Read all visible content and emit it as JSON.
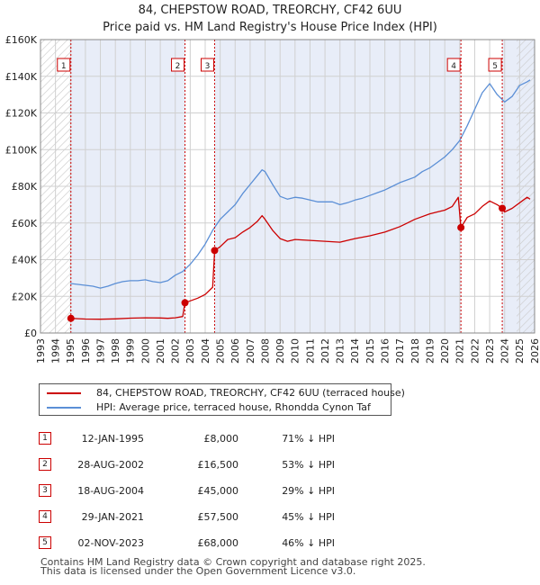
{
  "title": "84, CHEPSTOW ROAD, TREORCHY, CF42 6UU",
  "subtitle": "Price paid vs. HM Land Registry's House Price Index (HPI)",
  "chart_data": {
    "type": "line",
    "title": "84, CHEPSTOW ROAD, TREORCHY, CF42 6UU",
    "subtitle": "Price paid vs. HM Land Registry's House Price Index (HPI)",
    "xlabel": "",
    "ylabel": "",
    "xlim": [
      1993,
      2026
    ],
    "ylim": [
      0,
      160000
    ],
    "y_ticks": [
      0,
      20000,
      40000,
      60000,
      80000,
      100000,
      120000,
      140000,
      160000
    ],
    "y_tick_labels": [
      "£0",
      "£20K",
      "£40K",
      "£60K",
      "£80K",
      "£100K",
      "£120K",
      "£140K",
      "£160K"
    ],
    "x_ticks": [
      1993,
      1994,
      1995,
      1996,
      1997,
      1998,
      1999,
      2000,
      2001,
      2002,
      2003,
      2004,
      2005,
      2006,
      2007,
      2008,
      2009,
      2010,
      2011,
      2012,
      2013,
      2014,
      2015,
      2016,
      2017,
      2018,
      2019,
      2020,
      2021,
      2022,
      2023,
      2024,
      2025,
      2026
    ],
    "grid": true,
    "shaded_ranges": [
      [
        1995.0,
        2002.65
      ],
      [
        2004.63,
        2021.08
      ],
      [
        2023.84,
        2026
      ]
    ],
    "hatched_ranges": [
      [
        1993,
        1995.0
      ],
      [
        2024.8,
        2026
      ]
    ],
    "series": [
      {
        "name": "84, CHEPSTOW ROAD, TREORCHY, CF42 6UU (terraced house)",
        "color": "#cc0000",
        "points": [
          [
            1995.03,
            8000
          ],
          [
            1995.5,
            7800
          ],
          [
            1996,
            7600
          ],
          [
            1997,
            7500
          ],
          [
            1998,
            7700
          ],
          [
            1999,
            8100
          ],
          [
            2000,
            8300
          ],
          [
            2001,
            8200
          ],
          [
            2001.5,
            8000
          ],
          [
            2002,
            8300
          ],
          [
            2002.5,
            9000
          ],
          [
            2002.65,
            16500
          ],
          [
            2003,
            17500
          ],
          [
            2003.5,
            19000
          ],
          [
            2004,
            21000
          ],
          [
            2004.5,
            25000
          ],
          [
            2004.63,
            45000
          ],
          [
            2005,
            47000
          ],
          [
            2005.5,
            51000
          ],
          [
            2006,
            52000
          ],
          [
            2006.5,
            55000
          ],
          [
            2007,
            57500
          ],
          [
            2007.5,
            61000
          ],
          [
            2007.8,
            64000
          ],
          [
            2008,
            62000
          ],
          [
            2008.5,
            56000
          ],
          [
            2009,
            51500
          ],
          [
            2009.5,
            50000
          ],
          [
            2010,
            51000
          ],
          [
            2011,
            50500
          ],
          [
            2012,
            50000
          ],
          [
            2013,
            49500
          ],
          [
            2013.5,
            50500
          ],
          [
            2014,
            51500
          ],
          [
            2015,
            53000
          ],
          [
            2016,
            55000
          ],
          [
            2017,
            58000
          ],
          [
            2017.5,
            60000
          ],
          [
            2018,
            62000
          ],
          [
            2019,
            65000
          ],
          [
            2019.5,
            66000
          ],
          [
            2020,
            67000
          ],
          [
            2020.5,
            69000
          ],
          [
            2020.9,
            74000
          ],
          [
            2021.08,
            57500
          ],
          [
            2021.5,
            63000
          ],
          [
            2022,
            65000
          ],
          [
            2022.5,
            69000
          ],
          [
            2023,
            72000
          ],
          [
            2023.5,
            70000
          ],
          [
            2023.84,
            68000
          ],
          [
            2024,
            66000
          ],
          [
            2024.5,
            68000
          ],
          [
            2025,
            71000
          ],
          [
            2025.5,
            74000
          ],
          [
            2025.7,
            73000
          ]
        ]
      },
      {
        "name": "HPI: Average price, terraced house, Rhondda Cynon Taf",
        "color": "#5b8fd6",
        "points": [
          [
            1995,
            27000
          ],
          [
            1995.5,
            26500
          ],
          [
            1996,
            26000
          ],
          [
            1996.5,
            25500
          ],
          [
            1997,
            24500
          ],
          [
            1997.5,
            25500
          ],
          [
            1998,
            27000
          ],
          [
            1998.5,
            28000
          ],
          [
            1999,
            28500
          ],
          [
            1999.5,
            28500
          ],
          [
            2000,
            29000
          ],
          [
            2000.5,
            28000
          ],
          [
            2001,
            27500
          ],
          [
            2001.5,
            28500
          ],
          [
            2002,
            31500
          ],
          [
            2002.5,
            33500
          ],
          [
            2003,
            37500
          ],
          [
            2003.5,
            42500
          ],
          [
            2004,
            48500
          ],
          [
            2004.5,
            56000
          ],
          [
            2005,
            62000
          ],
          [
            2005.5,
            66000
          ],
          [
            2006,
            70000
          ],
          [
            2006.5,
            76000
          ],
          [
            2007,
            81000
          ],
          [
            2007.5,
            86000
          ],
          [
            2007.8,
            89000
          ],
          [
            2008,
            88000
          ],
          [
            2008.5,
            81000
          ],
          [
            2009,
            74500
          ],
          [
            2009.5,
            73000
          ],
          [
            2010,
            74000
          ],
          [
            2010.5,
            73500
          ],
          [
            2011,
            72500
          ],
          [
            2011.5,
            71500
          ],
          [
            2012,
            71500
          ],
          [
            2012.5,
            71500
          ],
          [
            2013,
            70000
          ],
          [
            2013.5,
            71000
          ],
          [
            2014,
            72500
          ],
          [
            2014.5,
            73500
          ],
          [
            2015,
            75000
          ],
          [
            2015.5,
            76500
          ],
          [
            2016,
            78000
          ],
          [
            2016.5,
            80000
          ],
          [
            2017,
            82000
          ],
          [
            2017.5,
            83500
          ],
          [
            2018,
            85000
          ],
          [
            2018.5,
            88000
          ],
          [
            2019,
            90000
          ],
          [
            2019.5,
            93000
          ],
          [
            2020,
            96000
          ],
          [
            2020.5,
            100000
          ],
          [
            2021,
            105000
          ],
          [
            2021.5,
            113000
          ],
          [
            2022,
            122000
          ],
          [
            2022.5,
            131000
          ],
          [
            2023,
            136000
          ],
          [
            2023.5,
            130000
          ],
          [
            2024,
            126000
          ],
          [
            2024.5,
            129000
          ],
          [
            2025,
            135000
          ],
          [
            2025.5,
            137000
          ],
          [
            2025.7,
            138000
          ]
        ]
      }
    ],
    "sales": [
      {
        "num": "1",
        "x": 1995.03,
        "price": 8000
      },
      {
        "num": "2",
        "x": 2002.65,
        "price": 16500
      },
      {
        "num": "3",
        "x": 2004.63,
        "price": 45000
      },
      {
        "num": "4",
        "x": 2021.08,
        "price": 57500
      },
      {
        "num": "5",
        "x": 2023.84,
        "price": 68000
      }
    ],
    "legend_placement": "below-chart"
  },
  "legend": {
    "property_label": "84, CHEPSTOW ROAD, TREORCHY, CF42 6UU (terraced house)",
    "hpi_label": "HPI: Average price, terraced house, Rhondda Cynon Taf",
    "property_color": "#cc0000",
    "hpi_color": "#5b8fd6"
  },
  "sales_table": [
    {
      "num": "1",
      "date": "12-JAN-1995",
      "price": "£8,000",
      "hpi": "71% ↓ HPI"
    },
    {
      "num": "2",
      "date": "28-AUG-2002",
      "price": "£16,500",
      "hpi": "53% ↓ HPI"
    },
    {
      "num": "3",
      "date": "18-AUG-2004",
      "price": "£45,000",
      "hpi": "29% ↓ HPI"
    },
    {
      "num": "4",
      "date": "29-JAN-2021",
      "price": "£57,500",
      "hpi": "45% ↓ HPI"
    },
    {
      "num": "5",
      "date": "02-NOV-2023",
      "price": "£68,000",
      "hpi": "46% ↓ HPI"
    }
  ],
  "footer": {
    "line1": "Contains HM Land Registry data © Crown copyright and database right 2025.",
    "line2": "This data is licensed under the Open Government Licence v3.0."
  }
}
